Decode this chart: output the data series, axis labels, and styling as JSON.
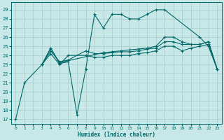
{
  "xlabel": "Humidex (Indice chaleur)",
  "bg_color": "#c8e8e8",
  "grid_color": "#a8d0d0",
  "line_color": "#006868",
  "xlim": [
    -0.5,
    23.5
  ],
  "ylim": [
    16.5,
    29.8
  ],
  "yticks": [
    17,
    18,
    19,
    20,
    21,
    22,
    23,
    24,
    25,
    26,
    27,
    28,
    29
  ],
  "xticks": [
    0,
    1,
    2,
    3,
    4,
    5,
    6,
    7,
    8,
    9,
    10,
    11,
    12,
    13,
    14,
    15,
    16,
    17,
    18,
    19,
    20,
    21,
    22,
    23
  ],
  "series": [
    {
      "x": [
        0,
        1,
        3,
        4,
        5,
        6,
        7,
        8,
        9,
        10,
        11,
        12,
        13,
        14,
        15,
        16,
        17,
        21,
        22,
        23
      ],
      "y": [
        17.0,
        21.0,
        23.0,
        24.8,
        23.1,
        23.3,
        17.5,
        22.5,
        28.5,
        27.0,
        28.5,
        28.5,
        28.0,
        28.0,
        28.5,
        29.0,
        29.0,
        26.0,
        25.0,
        22.5
      ]
    },
    {
      "x": [
        3,
        4,
        5,
        10,
        11,
        12,
        13,
        14,
        15,
        16,
        17,
        18,
        19,
        20,
        21,
        22,
        23
      ],
      "y": [
        23.0,
        24.8,
        23.2,
        24.3,
        24.4,
        24.5,
        24.6,
        24.7,
        24.8,
        25.0,
        26.0,
        26.0,
        25.5,
        25.2,
        25.2,
        25.5,
        22.5
      ]
    },
    {
      "x": [
        3,
        4,
        5,
        6,
        8,
        9,
        10,
        11,
        12,
        13,
        14,
        15,
        16,
        17,
        18,
        19,
        20,
        21,
        22,
        23
      ],
      "y": [
        23.0,
        24.5,
        23.3,
        23.5,
        24.5,
        24.2,
        24.2,
        24.3,
        24.4,
        24.4,
        24.5,
        24.7,
        24.8,
        25.5,
        25.5,
        25.2,
        25.2,
        25.2,
        25.5,
        22.5
      ]
    },
    {
      "x": [
        3,
        4,
        5,
        6,
        8,
        9,
        10,
        11,
        12,
        13,
        14,
        15,
        16,
        17,
        18,
        19,
        20,
        21,
        22,
        23
      ],
      "y": [
        23.0,
        24.2,
        23.0,
        24.0,
        24.0,
        23.8,
        23.8,
        24.0,
        24.0,
        24.0,
        24.2,
        24.3,
        24.5,
        25.0,
        25.0,
        24.5,
        24.8,
        25.0,
        25.2,
        22.5
      ]
    }
  ]
}
